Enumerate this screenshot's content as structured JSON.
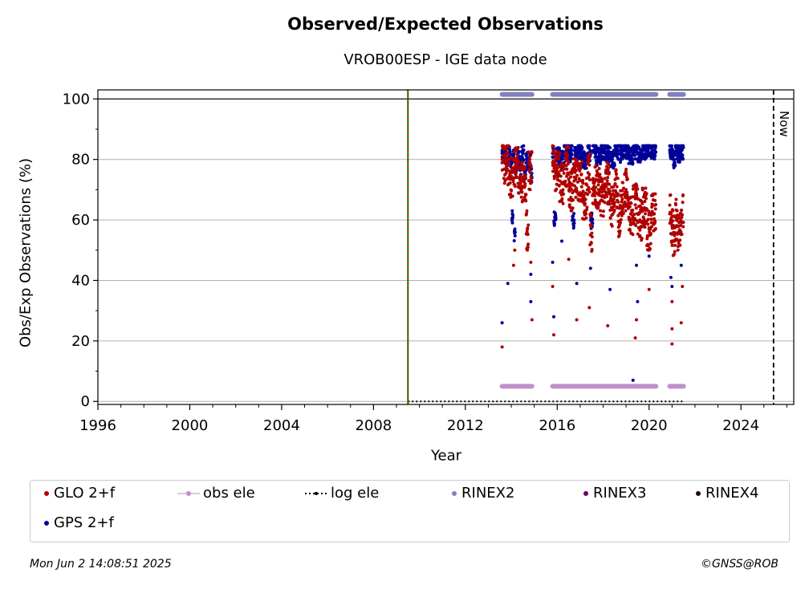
{
  "title": "Observed/Expected Observations",
  "subtitle": "VROB00ESP - IGE data node",
  "footer": {
    "timestamp": "Mon Jun  2 14:08:51 2025",
    "credit": "©GNSS@ROB"
  },
  "colors": {
    "glo": "#b00000",
    "gps": "#000099",
    "obs_ele": "#c090cc",
    "rinex2": "#8080c0",
    "rinex3": "#660066",
    "rinex4": "#220022",
    "log_ele": "#000000",
    "green_line": "#008000",
    "red_line": "#cc0000"
  },
  "chart_data": {
    "type": "scatter",
    "xlabel": "Year",
    "ylabel": "Obs/Exp Observations (%)",
    "xlim": [
      1996,
      2026.3
    ],
    "ylim": [
      -1,
      103
    ],
    "xticks": [
      "1996",
      "2000",
      "2004",
      "2008",
      "2012",
      "2016",
      "2020",
      "2024"
    ],
    "yticks": [
      "0",
      "20",
      "40",
      "60",
      "80",
      "100"
    ],
    "grid": "horizontal",
    "legend_placement": "bottom",
    "now_label": "Now",
    "now_x": 2025.42,
    "marker_x": 2009.5,
    "legend": [
      {
        "key": "glo",
        "label": "GLO 2+f"
      },
      {
        "key": "obs_ele",
        "label": "obs ele"
      },
      {
        "key": "log_ele",
        "label": "log ele"
      },
      {
        "key": "rinex2",
        "label": "RINEX2"
      },
      {
        "key": "rinex3",
        "label": "RINEX3"
      },
      {
        "key": "rinex4",
        "label": "RINEX4"
      },
      {
        "key": "gps",
        "label": "GPS 2+f"
      }
    ],
    "series": [
      {
        "name": "GPS 2+f",
        "key": "gps",
        "segments": [
          [
            2013.6,
            2014.9
          ],
          [
            2015.8,
            2020.3
          ],
          [
            2020.9,
            2021.5
          ]
        ],
        "points": [
          [
            2013.6,
            82
          ],
          [
            2013.7,
            81
          ],
          [
            2013.8,
            80
          ],
          [
            2013.9,
            82
          ],
          [
            2014.0,
            79
          ],
          [
            2014.1,
            81
          ],
          [
            2014.2,
            77
          ],
          [
            2014.3,
            80
          ],
          [
            2014.4,
            78
          ],
          [
            2014.5,
            82
          ],
          [
            2014.6,
            76
          ],
          [
            2014.7,
            80
          ],
          [
            2014.8,
            79
          ],
          [
            2014.9,
            74
          ],
          [
            2015.8,
            82
          ],
          [
            2016.0,
            81
          ],
          [
            2016.2,
            80
          ],
          [
            2016.4,
            83
          ],
          [
            2016.6,
            82
          ],
          [
            2016.8,
            81
          ],
          [
            2017.0,
            83
          ],
          [
            2017.2,
            80
          ],
          [
            2017.4,
            82
          ],
          [
            2017.6,
            83
          ],
          [
            2017.8,
            81
          ],
          [
            2018.0,
            83
          ],
          [
            2018.2,
            82
          ],
          [
            2018.4,
            80
          ],
          [
            2018.6,
            83
          ],
          [
            2018.8,
            82
          ],
          [
            2019.0,
            83
          ],
          [
            2019.2,
            81
          ],
          [
            2019.4,
            83
          ],
          [
            2019.6,
            82
          ],
          [
            2019.8,
            83
          ],
          [
            2020.0,
            84
          ],
          [
            2020.2,
            83
          ],
          [
            2020.9,
            83
          ],
          [
            2021.0,
            82
          ],
          [
            2021.1,
            80
          ],
          [
            2021.2,
            83
          ],
          [
            2021.3,
            82
          ],
          [
            2021.4,
            83
          ],
          [
            2013.6,
            26
          ],
          [
            2013.85,
            39
          ],
          [
            2014.05,
            62
          ],
          [
            2014.15,
            56
          ],
          [
            2014.85,
            33
          ],
          [
            2014.85,
            42
          ],
          [
            2015.8,
            46
          ],
          [
            2015.85,
            28
          ],
          [
            2015.9,
            61
          ],
          [
            2016.2,
            53
          ],
          [
            2016.7,
            60
          ],
          [
            2016.85,
            39
          ],
          [
            2017.45,
            44
          ],
          [
            2017.5,
            60
          ],
          [
            2018.3,
            37
          ],
          [
            2019.3,
            7
          ],
          [
            2019.45,
            45
          ],
          [
            2019.5,
            33
          ],
          [
            2020.0,
            48
          ],
          [
            2020.95,
            41
          ],
          [
            2021.0,
            38
          ],
          [
            2021.0,
            5
          ],
          [
            2021.4,
            45
          ]
        ]
      },
      {
        "name": "GLO 2+f",
        "key": "glo",
        "segments": [
          [
            2013.6,
            2014.9
          ],
          [
            2015.8,
            2020.3
          ],
          [
            2020.9,
            2021.5
          ]
        ],
        "points": [
          [
            2013.6,
            80
          ],
          [
            2013.8,
            78
          ],
          [
            2014.0,
            74
          ],
          [
            2014.2,
            78
          ],
          [
            2014.4,
            73
          ],
          [
            2014.6,
            72
          ],
          [
            2014.8,
            76
          ],
          [
            2015.8,
            79
          ],
          [
            2016.0,
            76
          ],
          [
            2016.2,
            72
          ],
          [
            2016.4,
            78
          ],
          [
            2016.6,
            70
          ],
          [
            2016.8,
            74
          ],
          [
            2017.0,
            73
          ],
          [
            2017.2,
            67
          ],
          [
            2017.4,
            75
          ],
          [
            2017.6,
            71
          ],
          [
            2017.8,
            70
          ],
          [
            2018.0,
            68
          ],
          [
            2018.2,
            72
          ],
          [
            2018.4,
            64
          ],
          [
            2018.6,
            71
          ],
          [
            2018.8,
            66
          ],
          [
            2019.0,
            70
          ],
          [
            2019.2,
            62
          ],
          [
            2019.4,
            65
          ],
          [
            2019.6,
            60
          ],
          [
            2019.8,
            64
          ],
          [
            2020.0,
            57
          ],
          [
            2020.2,
            62
          ],
          [
            2020.9,
            62
          ],
          [
            2021.0,
            58
          ],
          [
            2021.1,
            55
          ],
          [
            2021.2,
            60
          ],
          [
            2021.3,
            56
          ],
          [
            2021.4,
            62
          ],
          [
            2013.6,
            18
          ],
          [
            2014.1,
            45
          ],
          [
            2014.15,
            50
          ],
          [
            2014.7,
            57
          ],
          [
            2014.85,
            46
          ],
          [
            2014.9,
            27
          ],
          [
            2015.8,
            38
          ],
          [
            2015.85,
            22
          ],
          [
            2016.5,
            47
          ],
          [
            2016.85,
            27
          ],
          [
            2017.4,
            31
          ],
          [
            2017.45,
            55
          ],
          [
            2018.2,
            25
          ],
          [
            2018.7,
            58
          ],
          [
            2019.4,
            21
          ],
          [
            2019.45,
            27
          ],
          [
            2020.0,
            37
          ],
          [
            2021.0,
            24
          ],
          [
            2021.0,
            19
          ],
          [
            2021.0,
            33
          ],
          [
            2021.4,
            26
          ],
          [
            2021.45,
            38
          ]
        ]
      },
      {
        "name": "obs ele",
        "key": "obs_ele",
        "segments": [
          [
            2013.6,
            2014.9
          ],
          [
            2015.8,
            2020.3
          ],
          [
            2020.9,
            2021.5
          ]
        ],
        "y": 5
      },
      {
        "name": "RINEX2",
        "key": "rinex2",
        "segments": [
          [
            2013.6,
            2014.9
          ],
          [
            2015.8,
            2020.3
          ],
          [
            2020.9,
            2021.5
          ]
        ],
        "y": 101.5
      },
      {
        "name": "log ele",
        "key": "log_ele",
        "segments": [
          [
            2009.5,
            2021.5
          ]
        ],
        "y": 0
      }
    ]
  }
}
